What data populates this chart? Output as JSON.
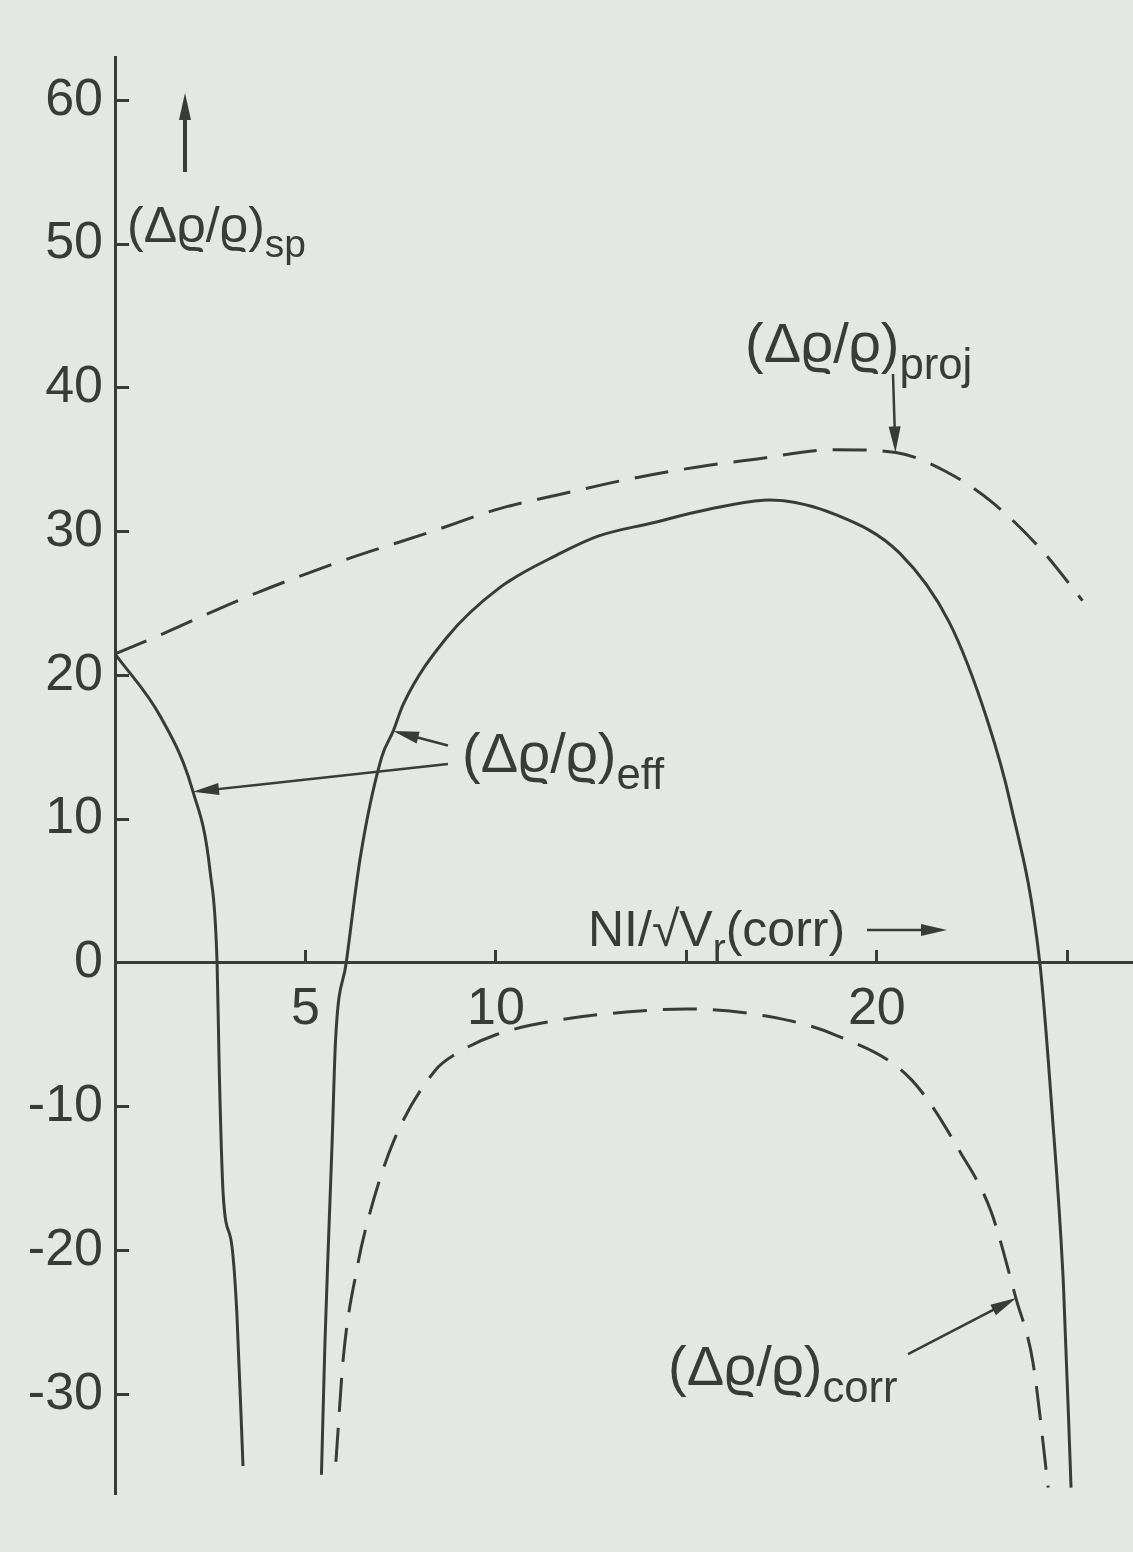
{
  "chart_data": {
    "type": "line",
    "xlabel": "NI/√V$_{r}$(corr)",
    "ylabel": "(Δϱ/ϱ)$_{sp}$",
    "xlim": [
      0,
      26.7
    ],
    "ylim": [
      -37,
      63
    ],
    "xticks": [
      5,
      10,
      {
        "value": 15,
        "label": null
      },
      20,
      {
        "value": 25,
        "label": null
      }
    ],
    "yticks": [
      -30,
      -20,
      -10,
      0,
      10,
      20,
      30,
      40,
      50,
      60
    ],
    "series": [
      {
        "name": "(Δϱ/ϱ)$_{proj}$",
        "color": "#3a3a3a",
        "line_style": "dashed",
        "x": [
          0,
          1.0,
          3.5,
          6.0,
          8.2,
          10.1,
          11.7,
          13.4,
          15.3,
          16.7,
          18.9,
          20.5,
          21.8,
          23.0,
          24.3,
          25.4
        ],
        "values": [
          21.5,
          22.6,
          25.5,
          28.0,
          29.9,
          31.6,
          32.6,
          33.6,
          34.5,
          35.0,
          35.7,
          35.5,
          34.2,
          32.1,
          28.8,
          25.2
        ]
      },
      {
        "name": "(Δϱ/ϱ)$_{eff}$",
        "color": "#3a3a3a",
        "line_style": "solid",
        "x": [
          0,
          1.2,
          2.05,
          2.5,
          2.68,
          2.74,
          2.84,
          3.07,
          3.2,
          3.36,
          null,
          5.42,
          5.51,
          5.6,
          5.7,
          5.79,
          6.07,
          6.45,
          7.0,
          7.3,
          7.57,
          8.7,
          10.1,
          11.7,
          12.7,
          14.1,
          15.5,
          17.2,
          18.9,
          20.6,
          21.9,
          22.9,
          23.5,
          24.28,
          24.6,
          24.9,
          25.1
        ],
        "values": [
          21.5,
          17.1,
          11.9,
          6.3,
          0,
          -7.8,
          -16.1,
          -19.7,
          -24.4,
          -35,
          null,
          -35.6,
          -26.6,
          -19.7,
          -12.5,
          -5.4,
          0,
          7.5,
          14.3,
          16.1,
          18.0,
          22.6,
          26.1,
          28.5,
          29.7,
          30.6,
          31.5,
          32.2,
          31.2,
          28.5,
          23.7,
          16.9,
          11.2,
          0,
          -10.3,
          -22.4,
          -36.5
        ]
      },
      {
        "name": "(Δϱ/ϱ)$_{corr}$",
        "color": "#3a3a3a",
        "line_style": "dashed",
        "x": [
          5.8,
          6.0,
          6.35,
          6.64,
          7.3,
          8.4,
          8.97,
          10.0,
          11.6,
          13.5,
          15.0,
          17.1,
          18.9,
          20.9,
          22.2,
          23.0,
          23.65,
          24.1,
          24.5
        ],
        "values": [
          -34.7,
          -27.3,
          -21.3,
          -17.9,
          -12.5,
          -7.5,
          -6.3,
          -5.0,
          -4.0,
          -3.4,
          -3.2,
          -3.7,
          -5.0,
          -8.1,
          -13.2,
          -17.3,
          -23.3,
          -27.8,
          -36.5
        ]
      }
    ]
  }
}
